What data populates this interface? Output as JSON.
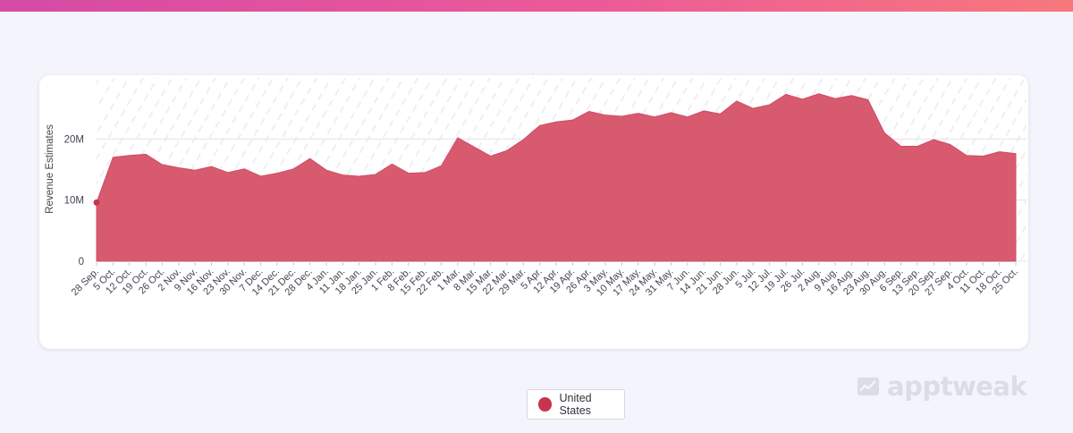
{
  "brand": {
    "watermark": "apptweak"
  },
  "colors": {
    "series": "#d85a6f",
    "marker": "#c8344c",
    "grid": "#e3e3ea"
  },
  "legend": {
    "label": "United States"
  },
  "chart_data": {
    "type": "area",
    "ylabel": "Revenue Estimates",
    "ylim": [
      0,
      30000000
    ],
    "yticks": [
      {
        "value": 0,
        "label": "0"
      },
      {
        "value": 10000000,
        "label": "10M"
      },
      {
        "value": 20000000,
        "label": "20M"
      }
    ],
    "x": [
      "28 Sep.",
      "5 Oct.",
      "12 Oct.",
      "19 Oct.",
      "26 Oct.",
      "2 Nov.",
      "9 Nov.",
      "16 Nov.",
      "23 Nov.",
      "30 Nov.",
      "7 Dec.",
      "14 Dec.",
      "21 Dec.",
      "28 Dec.",
      "4 Jan.",
      "11 Jan.",
      "18 Jan.",
      "25 Jan.",
      "1 Feb.",
      "8 Feb.",
      "15 Feb.",
      "22 Feb.",
      "1 Mar.",
      "8 Mar.",
      "15 Mar.",
      "22 Mar.",
      "29 Mar.",
      "5 Apr.",
      "12 Apr.",
      "19 Apr.",
      "26 Apr.",
      "3 May.",
      "10 May.",
      "17 May.",
      "24 May.",
      "31 May.",
      "7 Jun.",
      "14 Jun.",
      "21 Jun.",
      "28 Jun.",
      "5 Jul.",
      "12 Jul.",
      "19 Jul.",
      "26 Jul.",
      "2 Aug.",
      "9 Aug.",
      "16 Aug.",
      "23 Aug.",
      "30 Aug.",
      "6 Sep.",
      "13 Sep.",
      "20 Sep.",
      "27 Sep.",
      "4 Oct.",
      "11 Oct.",
      "18 Oct.",
      "25 Oct."
    ],
    "series": [
      {
        "name": "United States",
        "values": [
          9600000,
          17000000,
          17300000,
          17500000,
          15800000,
          15300000,
          14900000,
          15500000,
          14500000,
          15100000,
          13900000,
          14400000,
          15100000,
          16800000,
          14900000,
          14100000,
          13900000,
          14200000,
          15900000,
          14400000,
          14500000,
          15600000,
          20200000,
          18700000,
          17200000,
          18100000,
          19900000,
          22200000,
          22800000,
          23100000,
          24500000,
          23900000,
          23700000,
          24200000,
          23600000,
          24300000,
          23600000,
          24600000,
          24100000,
          26200000,
          25000000,
          25600000,
          27300000,
          26500000,
          27400000,
          26600000,
          27100000,
          26400000,
          21000000,
          18800000,
          18800000,
          19900000,
          19100000,
          17300000,
          17200000,
          17900000,
          17600000
        ]
      }
    ],
    "grid": true,
    "legend_position": "bottom-center"
  }
}
